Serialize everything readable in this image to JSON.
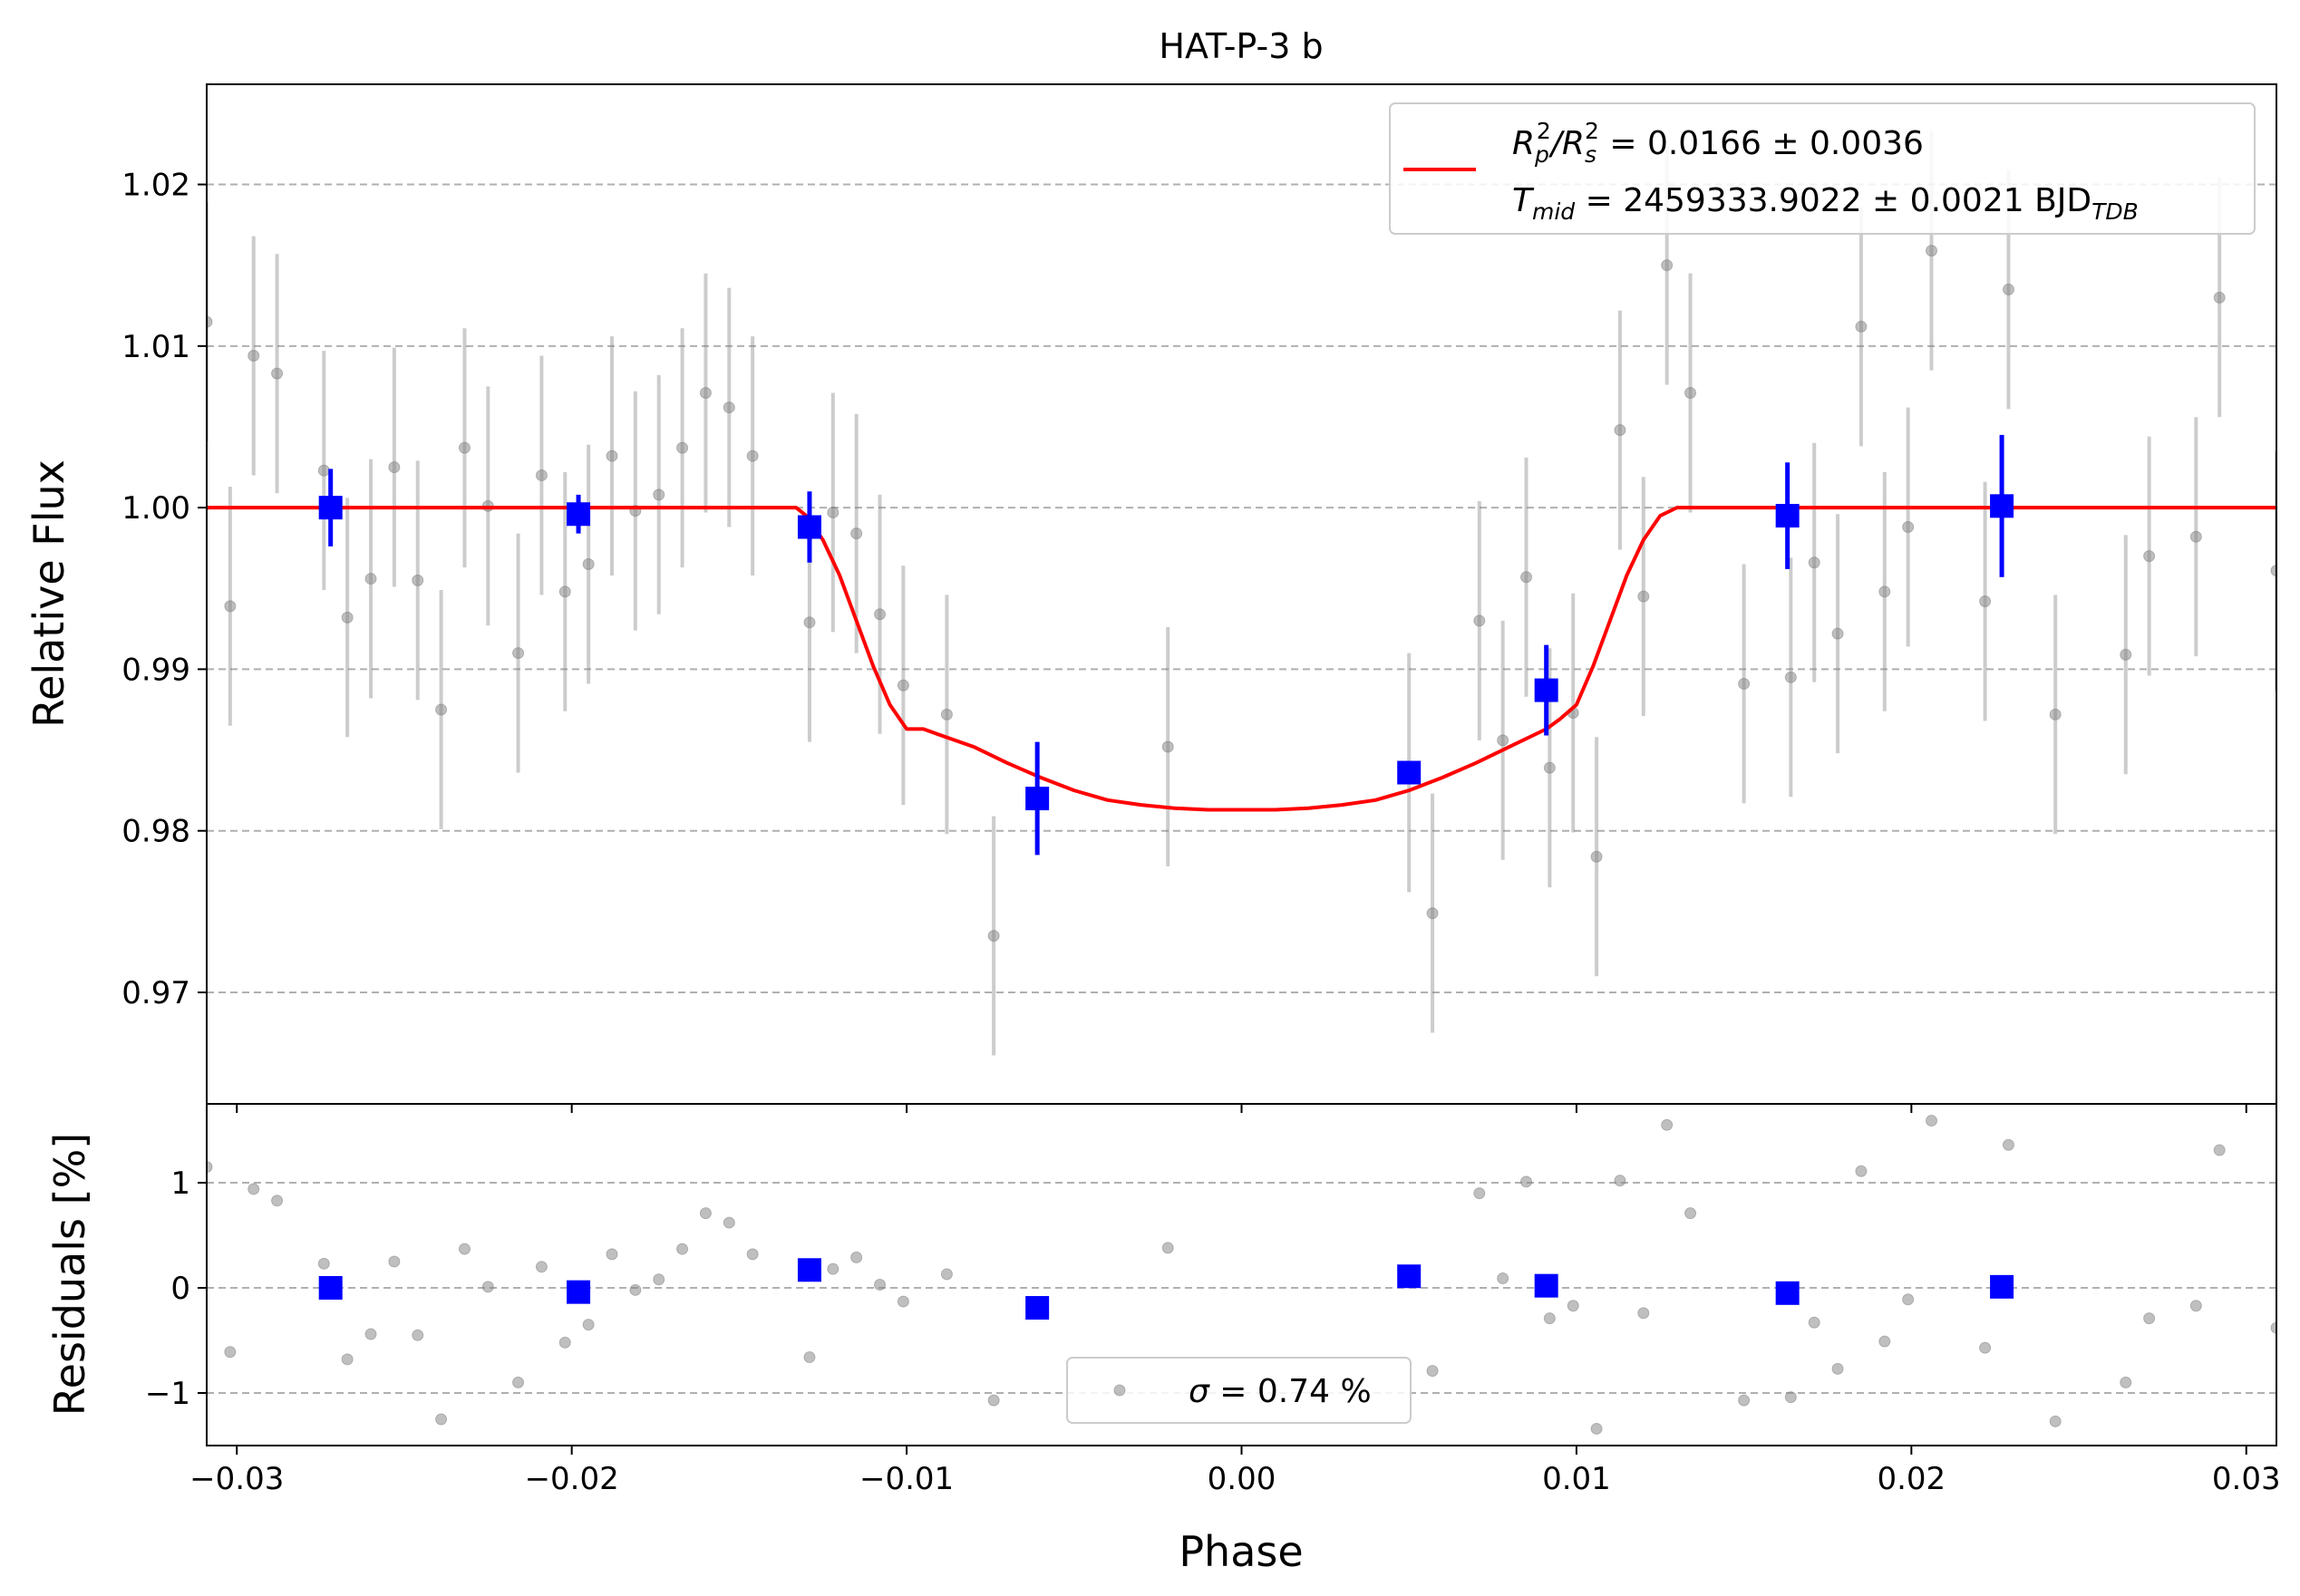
{
  "chart_data": [
    {
      "type": "scatter",
      "panel": "main",
      "title": "HAT-P-3 b",
      "xlabel": "",
      "ylabel": "Relative Flux",
      "xlim": [
        -0.0309,
        0.0309
      ],
      "ylim": [
        0.9631,
        1.0262
      ],
      "y_ticks": [
        0.97,
        0.98,
        0.99,
        1.0,
        1.01,
        1.02
      ],
      "y_tick_labels": [
        "0.97",
        "0.98",
        "0.99",
        "1.00",
        "1.01",
        "1.02"
      ],
      "grid": "horizontal dashed",
      "legend_placement": "top-right",
      "legend": {
        "rp_rs_label": "R_p^2/R_s^2 = 0.0166 ± 0.0036",
        "rp_main": "R",
        "rp_sub": "p",
        "rp_sup": "2",
        "rp_slash": "/R",
        "rs_sub": "s",
        "rs_sup": "2",
        "rp_value": " = 0.0166 ± 0.0036",
        "tmid_label": "T_mid = 2459333.9022 ± 0.0021 BJD_TDB",
        "tmid_main": "T",
        "tmid_sub": "mid",
        "tmid_value": " = 2459333.9022 ± 0.0021 BJD",
        "tmid_unit_sub": "TDB"
      },
      "series": [
        {
          "name": "data",
          "color": "#808080",
          "x": [
            -0.0309,
            -0.0302,
            -0.0295,
            -0.0288,
            -0.0274,
            -0.0267,
            -0.026,
            -0.0253,
            -0.0246,
            -0.0239,
            -0.0232,
            -0.0225,
            -0.0216,
            -0.0209,
            -0.0202,
            -0.0195,
            -0.0188,
            -0.0181,
            -0.0174,
            -0.0167,
            -0.016,
            -0.0153,
            -0.0146,
            -0.0129,
            -0.0122,
            -0.0115,
            -0.0108,
            -0.0101,
            -0.0088,
            -0.0074,
            -0.0022,
            0.005,
            0.0057,
            0.0071,
            0.0078,
            0.0085,
            0.0092,
            0.0099,
            0.0106,
            0.0113,
            0.012,
            0.0127,
            0.0134,
            0.015,
            0.0164,
            0.0171,
            0.0178,
            0.0185,
            0.0192,
            0.0199,
            0.0206,
            0.0222,
            0.0229,
            0.0243,
            0.0264,
            0.0271,
            0.0285,
            0.0292,
            0.0309
          ],
          "y": [
            1.0115,
            0.9939,
            1.0094,
            1.0083,
            1.0023,
            0.9932,
            0.9956,
            1.0025,
            0.9955,
            0.9875,
            1.0037,
            1.0001,
            0.991,
            1.002,
            0.9948,
            0.9965,
            1.0032,
            0.9998,
            1.0008,
            1.0037,
            1.0071,
            1.0062,
            1.0032,
            0.9929,
            0.9997,
            0.9984,
            0.9934,
            0.989,
            0.9872,
            0.9735,
            0.9852,
            0.9836,
            0.9749,
            0.993,
            0.9856,
            0.9957,
            0.9839,
            0.9873,
            0.9784,
            1.0048,
            0.9945,
            1.015,
            1.0071,
            0.9891,
            0.9895,
            0.9966,
            0.9922,
            1.0112,
            0.9948,
            0.9988,
            1.0159,
            0.9942,
            1.0135,
            0.9872,
            0.9909,
            0.997,
            0.9982,
            1.013,
            0.9961
          ],
          "yerr": 0.0074
        },
        {
          "name": "binned",
          "color": "#0000ff",
          "x": [
            -0.0272,
            -0.0198,
            -0.0129,
            -0.0061,
            0.005,
            0.0091,
            0.0163,
            0.0227
          ],
          "y": [
            1.0,
            0.9996,
            0.9988,
            0.982,
            0.9836,
            0.9887,
            0.9995,
            1.0001
          ],
          "yerr": [
            0.0024,
            0.0012,
            0.0022,
            0.0035,
            0.0,
            0.0028,
            0.0033,
            0.0044
          ]
        },
        {
          "name": "model",
          "color": "#ff0000",
          "type": "line",
          "x": [
            -0.0309,
            -0.0133,
            -0.013,
            -0.0125,
            -0.012,
            -0.0115,
            -0.011,
            -0.0105,
            -0.01,
            -0.0095,
            -0.0091,
            -0.008,
            -0.007,
            -0.006,
            -0.005,
            -0.004,
            -0.003,
            -0.002,
            -0.001,
            0.0,
            0.001,
            0.002,
            0.003,
            0.004,
            0.005,
            0.006,
            0.007,
            0.008,
            0.0091,
            0.0095,
            0.01,
            0.0105,
            0.011,
            0.0115,
            0.012,
            0.0125,
            0.013,
            0.0133,
            0.0309
          ],
          "y": [
            1.0,
            1.0,
            0.9995,
            0.998,
            0.9958,
            0.993,
            0.9902,
            0.9878,
            0.9863,
            0.9863,
            0.986,
            0.9852,
            0.9842,
            0.9833,
            0.9825,
            0.9819,
            0.9816,
            0.9814,
            0.9813,
            0.9813,
            0.9813,
            0.9814,
            0.9816,
            0.9819,
            0.9825,
            0.9833,
            0.9842,
            0.9852,
            0.9863,
            0.9869,
            0.9878,
            0.9902,
            0.993,
            0.9958,
            0.998,
            0.9995,
            1.0,
            1.0,
            1.0
          ]
        }
      ]
    },
    {
      "type": "scatter",
      "panel": "residuals",
      "xlabel": "Phase",
      "ylabel": "Residuals [%]",
      "xlim": [
        -0.0309,
        0.0309
      ],
      "ylim": [
        -1.5,
        1.75
      ],
      "x_ticks": [
        -0.03,
        -0.02,
        -0.01,
        0.0,
        0.01,
        0.02,
        0.03
      ],
      "x_tick_labels": [
        "−0.03",
        "−0.02",
        "−0.01",
        "0.00",
        "0.01",
        "0.02",
        "0.03"
      ],
      "y_ticks": [
        -1,
        0,
        1
      ],
      "y_tick_labels": [
        "−1",
        "0",
        "1"
      ],
      "grid": "horizontal dashed",
      "legend_placement": "bottom-center",
      "legend": {
        "sigma_symbol": "σ",
        "sigma_value": " = 0.74 %"
      },
      "series": [
        {
          "name": "data",
          "color": "#808080",
          "x": [
            -0.0309,
            -0.0302,
            -0.0295,
            -0.0288,
            -0.0274,
            -0.0267,
            -0.026,
            -0.0253,
            -0.0246,
            -0.0239,
            -0.0232,
            -0.0225,
            -0.0216,
            -0.0209,
            -0.0202,
            -0.0195,
            -0.0188,
            -0.0181,
            -0.0174,
            -0.0167,
            -0.016,
            -0.0153,
            -0.0146,
            -0.0129,
            -0.0122,
            -0.0115,
            -0.0108,
            -0.0101,
            -0.0088,
            -0.0074,
            -0.0022,
            0.005,
            0.0057,
            0.0071,
            0.0078,
            0.0085,
            0.0092,
            0.0099,
            0.0106,
            0.0113,
            0.012,
            0.0127,
            0.0134,
            0.015,
            0.0164,
            0.0171,
            0.0178,
            0.0185,
            0.0192,
            0.0199,
            0.0206,
            0.0222,
            0.0229,
            0.0243,
            0.0264,
            0.0271,
            0.0285,
            0.0292,
            0.0309
          ],
          "y": [
            1.15,
            -0.61,
            0.94,
            0.83,
            0.23,
            -0.68,
            -0.44,
            0.25,
            -0.45,
            -1.25,
            0.37,
            0.01,
            -0.9,
            0.2,
            -0.52,
            -0.35,
            0.32,
            -0.02,
            0.08,
            0.37,
            0.71,
            0.62,
            0.32,
            -0.66,
            0.18,
            0.29,
            0.03,
            -0.13,
            0.13,
            -1.07,
            0.38,
            0.11,
            -0.79,
            0.9,
            0.09,
            1.01,
            -0.29,
            -0.17,
            -1.34,
            1.02,
            -0.24,
            1.55,
            0.71,
            -1.07,
            -1.04,
            -0.33,
            -0.77,
            1.11,
            -0.51,
            -0.11,
            1.59,
            -0.57,
            1.36,
            -1.27,
            -0.9,
            -0.29,
            -0.17,
            1.31,
            -0.38
          ]
        },
        {
          "name": "binned",
          "color": "#0000ff",
          "x": [
            -0.0272,
            -0.0198,
            -0.0129,
            -0.0061,
            0.005,
            0.0091,
            0.0163,
            0.0227
          ],
          "y": [
            0.0,
            -0.04,
            0.17,
            -0.19,
            0.11,
            0.02,
            -0.05,
            0.01
          ]
        }
      ]
    }
  ]
}
